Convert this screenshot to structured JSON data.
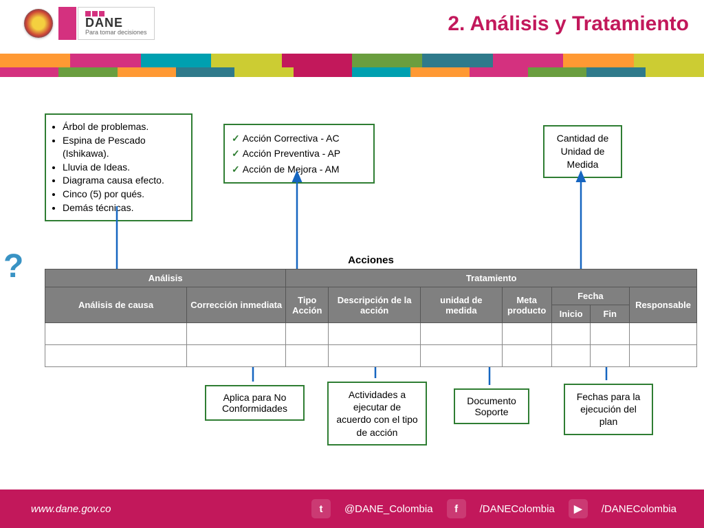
{
  "title": "2. Análisis y Tratamiento",
  "logo": {
    "name": "DANE",
    "tagline": "Para tomar decisiones"
  },
  "stripe_colors": [
    "#ff9933",
    "#d4317f",
    "#00a0b0",
    "#cccc33",
    "#c2185b",
    "#6a9e3f",
    "#2f7a8b",
    "#d4317f",
    "#ff9933",
    "#cccc33"
  ],
  "sub_stripe_colors": [
    "#d4317f",
    "#6a9e3f",
    "#ff9933",
    "#2f7a8b",
    "#cccc33",
    "#c2185b",
    "#00a0b0",
    "#ff9933",
    "#d4317f",
    "#6a9e3f",
    "#2f7a8b",
    "#cccc33"
  ],
  "boxes": {
    "list": [
      "Árbol de problemas.",
      "Espina de Pescado (Ishikawa).",
      "Lluvia de Ideas.",
      "Diagrama causa efecto.",
      "Cinco (5) por qués.",
      "Demás técnicas."
    ],
    "actions": [
      "Acción Correctiva - AC",
      "Acción Preventiva - AP",
      "Acción de Mejora - AM"
    ],
    "unit": "Cantidad de Unidad de Medida",
    "nc": "Aplica para No Conformidades",
    "act": "Actividades a ejecutar de acuerdo con el tipo de acción",
    "doc": "Documento Soporte",
    "fechas": "Fechas para la ejecución del plan"
  },
  "table": {
    "super_header": "Acciones",
    "group1": "Análisis",
    "group2": "Tratamiento",
    "cols": {
      "analisis": "Análisis de causa",
      "correccion": "Corrección inmediata",
      "tipo": "Tipo Acción",
      "descripcion": "Descripción de la acción",
      "unidad": "unidad de medida",
      "meta": "Meta producto",
      "fecha": "Fecha",
      "inicio": "Inicio",
      "fin": "Fin",
      "responsable": "Responsable"
    }
  },
  "footer": {
    "url": "www.dane.gov.co",
    "twitter": "@DANE_Colombia",
    "facebook": "/DANEColombia",
    "youtube": "/DANEColombia"
  },
  "style": {
    "box_border": "#2e7d32",
    "title_color": "#c2185b",
    "footer_bg": "#c2185b",
    "arrow_color": "#1565c0",
    "th_bg": "#808080"
  }
}
